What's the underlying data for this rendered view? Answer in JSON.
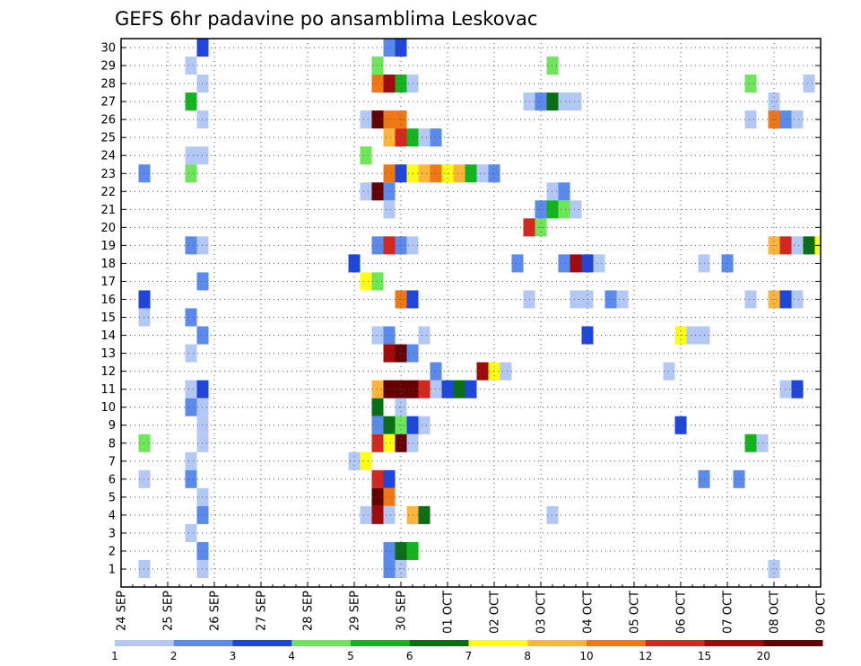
{
  "chart_data": {
    "type": "heatmap",
    "title": "GEFS 6hr padavine po ansamblima Leskovac",
    "x_tick_labels": [
      "24 SEP",
      "25 SEP",
      "26 SEP",
      "27 SEP",
      "28 SEP",
      "29 SEP",
      "30 SEP",
      "01 OCT",
      "02 OCT",
      "03 OCT",
      "04 OCT",
      "05 OCT",
      "06 OCT",
      "07 OCT",
      "08 OCT",
      "09 OCT"
    ],
    "y_tick_labels": [
      "1",
      "2",
      "3",
      "4",
      "5",
      "6",
      "7",
      "8",
      "9",
      "10",
      "11",
      "12",
      "13",
      "14",
      "15",
      "16",
      "17",
      "18",
      "19",
      "20",
      "21",
      "22",
      "23",
      "24",
      "25",
      "26",
      "27",
      "28",
      "29",
      "30"
    ],
    "y_range": [
      0,
      30
    ],
    "x_range_steps": [
      0,
      60
    ],
    "steps_per_day": 4,
    "grid": true,
    "colorbar": {
      "labels": [
        "1",
        "2",
        "3",
        "4",
        "5",
        "6",
        "7",
        "8",
        "10",
        "12",
        "15",
        "20"
      ],
      "colors": [
        "#b4c8f5",
        "#5a8aeb",
        "#1e46dc",
        "#6ee65a",
        "#14b41e",
        "#0a6e14",
        "#ffff14",
        "#ffb43c",
        "#f07814",
        "#d2281e",
        "#a00a0a",
        "#640000"
      ]
    },
    "cells": [
      [
        30,
        7,
        2
      ],
      [
        30,
        23,
        1
      ],
      [
        30,
        24,
        2
      ],
      [
        29,
        6,
        0
      ],
      [
        29,
        22,
        3
      ],
      [
        29,
        37,
        3
      ],
      [
        28,
        7,
        0
      ],
      [
        28,
        22,
        8
      ],
      [
        28,
        23,
        10
      ],
      [
        28,
        24,
        4
      ],
      [
        28,
        25,
        0
      ],
      [
        28,
        54,
        3
      ],
      [
        28,
        59,
        0
      ],
      [
        27,
        6,
        4
      ],
      [
        27,
        35,
        0
      ],
      [
        27,
        36,
        1
      ],
      [
        27,
        37,
        5
      ],
      [
        27,
        38,
        0
      ],
      [
        27,
        39,
        0
      ],
      [
        27,
        56,
        0
      ],
      [
        26,
        7,
        0
      ],
      [
        26,
        21,
        0
      ],
      [
        26,
        22,
        11
      ],
      [
        26,
        23,
        8
      ],
      [
        26,
        24,
        8
      ],
      [
        26,
        54,
        0
      ],
      [
        26,
        56,
        8
      ],
      [
        26,
        57,
        1
      ],
      [
        26,
        58,
        0
      ],
      [
        25,
        23,
        7
      ],
      [
        25,
        24,
        9
      ],
      [
        25,
        25,
        4
      ],
      [
        25,
        26,
        0
      ],
      [
        25,
        27,
        1
      ],
      [
        24,
        6,
        0
      ],
      [
        24,
        7,
        0
      ],
      [
        24,
        21,
        3
      ],
      [
        23,
        2,
        1
      ],
      [
        23,
        6,
        3
      ],
      [
        23,
        23,
        8
      ],
      [
        23,
        24,
        2
      ],
      [
        23,
        25,
        6
      ],
      [
        23,
        26,
        7
      ],
      [
        23,
        27,
        8
      ],
      [
        23,
        28,
        6
      ],
      [
        23,
        29,
        7
      ],
      [
        23,
        30,
        4
      ],
      [
        23,
        31,
        0
      ],
      [
        23,
        32,
        1
      ],
      [
        22,
        21,
        0
      ],
      [
        22,
        22,
        11
      ],
      [
        22,
        23,
        1
      ],
      [
        22,
        37,
        0
      ],
      [
        22,
        38,
        1
      ],
      [
        21,
        23,
        0
      ],
      [
        21,
        36,
        1
      ],
      [
        21,
        37,
        4
      ],
      [
        21,
        38,
        3
      ],
      [
        21,
        39,
        0
      ],
      [
        20,
        35,
        9
      ],
      [
        20,
        36,
        3
      ],
      [
        19,
        6,
        1
      ],
      [
        19,
        7,
        0
      ],
      [
        19,
        22,
        1
      ],
      [
        19,
        23,
        9
      ],
      [
        19,
        24,
        1
      ],
      [
        19,
        25,
        0
      ],
      [
        19,
        56,
        7
      ],
      [
        19,
        57,
        9
      ],
      [
        19,
        58,
        0
      ],
      [
        19,
        59,
        5
      ],
      [
        19,
        60,
        6
      ],
      [
        18,
        20,
        2
      ],
      [
        18,
        34,
        1
      ],
      [
        18,
        38,
        1
      ],
      [
        18,
        39,
        10
      ],
      [
        18,
        40,
        2
      ],
      [
        18,
        41,
        0
      ],
      [
        18,
        50,
        0
      ],
      [
        18,
        52,
        1
      ],
      [
        17,
        7,
        1
      ],
      [
        17,
        21,
        6
      ],
      [
        17,
        22,
        3
      ],
      [
        16,
        2,
        2
      ],
      [
        16,
        24,
        8
      ],
      [
        16,
        25,
        2
      ],
      [
        16,
        35,
        0
      ],
      [
        16,
        39,
        0
      ],
      [
        16,
        40,
        0
      ],
      [
        16,
        42,
        1
      ],
      [
        16,
        43,
        0
      ],
      [
        16,
        54,
        0
      ],
      [
        16,
        56,
        7
      ],
      [
        16,
        57,
        2
      ],
      [
        16,
        58,
        0
      ],
      [
        15,
        2,
        0
      ],
      [
        15,
        6,
        1
      ],
      [
        14,
        7,
        1
      ],
      [
        14,
        22,
        0
      ],
      [
        14,
        23,
        1
      ],
      [
        14,
        26,
        0
      ],
      [
        14,
        40,
        2
      ],
      [
        14,
        48,
        6
      ],
      [
        14,
        49,
        0
      ],
      [
        14,
        50,
        0
      ],
      [
        13,
        6,
        0
      ],
      [
        13,
        23,
        10
      ],
      [
        13,
        24,
        11
      ],
      [
        13,
        25,
        1
      ],
      [
        12,
        27,
        1
      ],
      [
        12,
        31,
        10
      ],
      [
        12,
        32,
        6
      ],
      [
        12,
        33,
        0
      ],
      [
        12,
        47,
        0
      ],
      [
        11,
        6,
        0
      ],
      [
        11,
        7,
        2
      ],
      [
        11,
        22,
        7
      ],
      [
        11,
        23,
        11
      ],
      [
        11,
        24,
        11
      ],
      [
        11,
        25,
        11
      ],
      [
        11,
        26,
        9
      ],
      [
        11,
        27,
        0
      ],
      [
        11,
        28,
        2
      ],
      [
        11,
        29,
        5
      ],
      [
        11,
        30,
        2
      ],
      [
        11,
        57,
        0
      ],
      [
        11,
        58,
        2
      ],
      [
        10,
        6,
        1
      ],
      [
        10,
        7,
        0
      ],
      [
        10,
        22,
        5
      ],
      [
        10,
        24,
        0
      ],
      [
        9,
        7,
        0
      ],
      [
        9,
        22,
        1
      ],
      [
        9,
        23,
        5
      ],
      [
        9,
        24,
        3
      ],
      [
        9,
        25,
        2
      ],
      [
        9,
        26,
        0
      ],
      [
        9,
        48,
        2
      ],
      [
        8,
        2,
        3
      ],
      [
        8,
        7,
        0
      ],
      [
        8,
        22,
        9
      ],
      [
        8,
        23,
        6
      ],
      [
        8,
        24,
        11
      ],
      [
        8,
        25,
        0
      ],
      [
        8,
        54,
        4
      ],
      [
        8,
        55,
        0
      ],
      [
        7,
        6,
        0
      ],
      [
        7,
        20,
        0
      ],
      [
        7,
        21,
        6
      ],
      [
        6,
        2,
        0
      ],
      [
        6,
        6,
        1
      ],
      [
        6,
        22,
        9
      ],
      [
        6,
        23,
        2
      ],
      [
        6,
        50,
        1
      ],
      [
        6,
        53,
        1
      ],
      [
        5,
        7,
        0
      ],
      [
        5,
        22,
        11
      ],
      [
        5,
        23,
        8
      ],
      [
        4,
        7,
        1
      ],
      [
        4,
        21,
        0
      ],
      [
        4,
        22,
        10
      ],
      [
        4,
        23,
        0
      ],
      [
        4,
        25,
        7
      ],
      [
        4,
        26,
        5
      ],
      [
        4,
        37,
        0
      ],
      [
        3,
        6,
        0
      ],
      [
        2,
        7,
        1
      ],
      [
        2,
        23,
        1
      ],
      [
        2,
        24,
        5
      ],
      [
        2,
        25,
        4
      ],
      [
        1,
        2,
        0
      ],
      [
        1,
        7,
        0
      ],
      [
        1,
        23,
        1
      ],
      [
        1,
        24,
        0
      ],
      [
        1,
        56,
        0
      ]
    ]
  }
}
